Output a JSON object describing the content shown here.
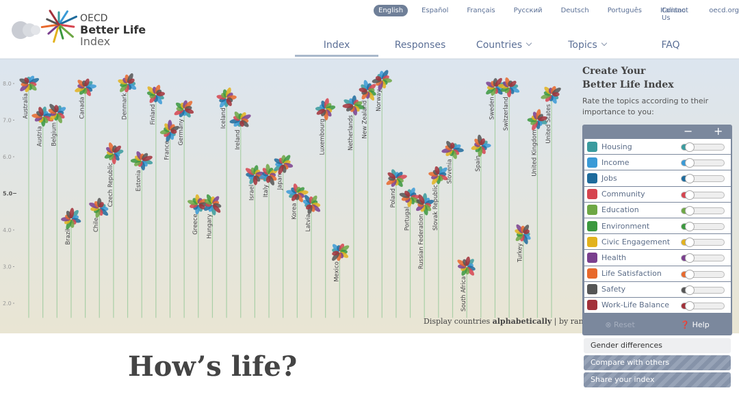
{
  "header": {
    "logo": {
      "org": "OECD",
      "line1": "Better Life",
      "line2": "Index"
    },
    "languages": [
      {
        "label": "English",
        "active": true
      },
      {
        "label": "Español"
      },
      {
        "label": "Français"
      },
      {
        "label": "Русский"
      },
      {
        "label": "Deutsch"
      },
      {
        "label": "Português"
      },
      {
        "label": "Italiano"
      }
    ],
    "links": [
      "Contact Us",
      "oecd.org"
    ],
    "nav": [
      {
        "label": "Index",
        "active": true
      },
      {
        "label": "Responses"
      },
      {
        "label": "Countries",
        "dropdown": true
      },
      {
        "label": "Topics",
        "dropdown": true
      },
      {
        "label": "FAQ"
      }
    ]
  },
  "chart_data": {
    "type": "flower",
    "categories": [
      "Australia",
      "Austria",
      "Belgium",
      "Brazil",
      "Canada",
      "Chile",
      "Czech Republic",
      "Denmark",
      "Estonia",
      "Finland",
      "France",
      "Germany",
      "Greece",
      "Hungary",
      "Iceland",
      "Ireland",
      "Israel",
      "Italy",
      "Japan",
      "Korea",
      "Latvia",
      "Luxembourg",
      "Mexico",
      "Netherlands",
      "New Zealand",
      "Norway",
      "Poland",
      "Portugal",
      "Russian Federation",
      "Slovak Republic",
      "Slovenia",
      "South Africa",
      "Spain",
      "Sweden",
      "Switzerland",
      "Turkey",
      "United Kingdom",
      "United States"
    ],
    "values": [
      8.0,
      7.1,
      7.2,
      4.3,
      7.9,
      4.6,
      6.1,
      8.0,
      5.9,
      7.7,
      6.7,
      7.3,
      4.7,
      4.7,
      7.6,
      7.0,
      5.5,
      5.5,
      5.8,
      5.0,
      4.7,
      7.3,
      3.4,
      7.4,
      7.8,
      8.1,
      5.4,
      4.9,
      4.7,
      5.5,
      6.2,
      3.0,
      6.3,
      7.9,
      7.9,
      3.9,
      7.0,
      7.7
    ],
    "ylim": [
      1.6,
      8.7
    ],
    "yticks": [
      {
        "value": 8,
        "label": "8.0"
      },
      {
        "value": 7,
        "label": "7.0"
      },
      {
        "value": 6,
        "label": "6.0"
      },
      {
        "value": 5,
        "label": "5.0"
      },
      {
        "value": 4,
        "label": "4.0"
      },
      {
        "value": 3,
        "label": "3.0"
      },
      {
        "value": 2,
        "label": "2.0"
      }
    ],
    "ytick_emphasis": 5
  },
  "display": {
    "prefix": "Display countries",
    "options": [
      "alphabetically",
      "by rank"
    ],
    "separator": "|"
  },
  "sidebar": {
    "title": [
      "Create Your",
      "Better Life Index"
    ],
    "description": "Rate the topics according to their importance to you:",
    "minus": "−",
    "plus": "+",
    "topics": [
      {
        "name": "Housing",
        "color": "#3a9b9e"
      },
      {
        "name": "Income",
        "color": "#3a9ad6"
      },
      {
        "name": "Jobs",
        "color": "#1e6b9c"
      },
      {
        "name": "Community",
        "color": "#d6444f"
      },
      {
        "name": "Education",
        "color": "#6da744"
      },
      {
        "name": "Environment",
        "color": "#3b983e"
      },
      {
        "name": "Civic Engagement",
        "color": "#e2b21d"
      },
      {
        "name": "Health",
        "color": "#7a3f8e"
      },
      {
        "name": "Life Satisfaction",
        "color": "#e8692c"
      },
      {
        "name": "Safety",
        "color": "#555555"
      },
      {
        "name": "Work-Life Balance",
        "color": "#a2313a"
      }
    ],
    "reset": "Reset",
    "help": "Help",
    "buttons": [
      "Gender differences",
      "Compare with others",
      "Share your index"
    ]
  },
  "headline": "How’s life?"
}
